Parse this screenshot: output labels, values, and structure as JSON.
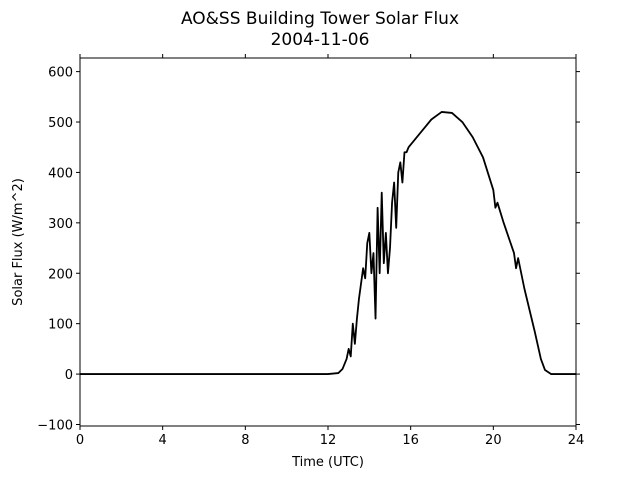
{
  "chart_data": {
    "type": "line",
    "title": "AO&SS Building Tower Solar Flux",
    "subtitle": "2004-11-06",
    "x_label": "Time (UTC)",
    "y_label": "Solar Flux (W/m^2)",
    "series": [
      {
        "color": "#000000",
        "x": [
          0,
          12,
          12.5,
          12.7,
          12.9,
          13.0,
          13.1,
          13.2,
          13.3,
          13.4,
          13.5,
          13.6,
          13.7,
          13.8,
          13.9,
          14.0,
          14.1,
          14.2,
          14.3,
          14.4,
          14.5,
          14.6,
          14.7,
          14.8,
          14.9,
          15.0,
          15.1,
          15.2,
          15.3,
          15.4,
          15.5,
          15.6,
          15.7,
          15.8,
          15.9,
          16.0,
          16.5,
          17.0,
          17.5,
          18.0,
          18.5,
          19.0,
          19.5,
          20.0,
          20.1,
          20.2,
          20.5,
          21.0,
          21.1,
          21.2,
          21.5,
          22.0,
          22.3,
          22.5,
          22.8,
          24
        ],
        "values": [
          0,
          0,
          2,
          10,
          30,
          50,
          35,
          100,
          60,
          110,
          150,
          180,
          210,
          190,
          260,
          280,
          200,
          240,
          110,
          330,
          200,
          360,
          220,
          280,
          200,
          250,
          340,
          380,
          290,
          400,
          420,
          380,
          440,
          440,
          450,
          455,
          480,
          505,
          520,
          518,
          500,
          470,
          430,
          365,
          330,
          340,
          300,
          240,
          210,
          230,
          170,
          85,
          30,
          8,
          0,
          0
        ]
      }
    ],
    "xlim": [
      0,
      24
    ],
    "xticks": [
      0,
      4,
      8,
      12,
      16,
      20,
      24
    ],
    "ylim": [
      -103,
      627
    ],
    "yticks": [
      {
        "value": -100,
        "label": "−100"
      },
      0,
      100,
      200,
      300,
      400,
      500,
      600
    ],
    "grid": false
  }
}
